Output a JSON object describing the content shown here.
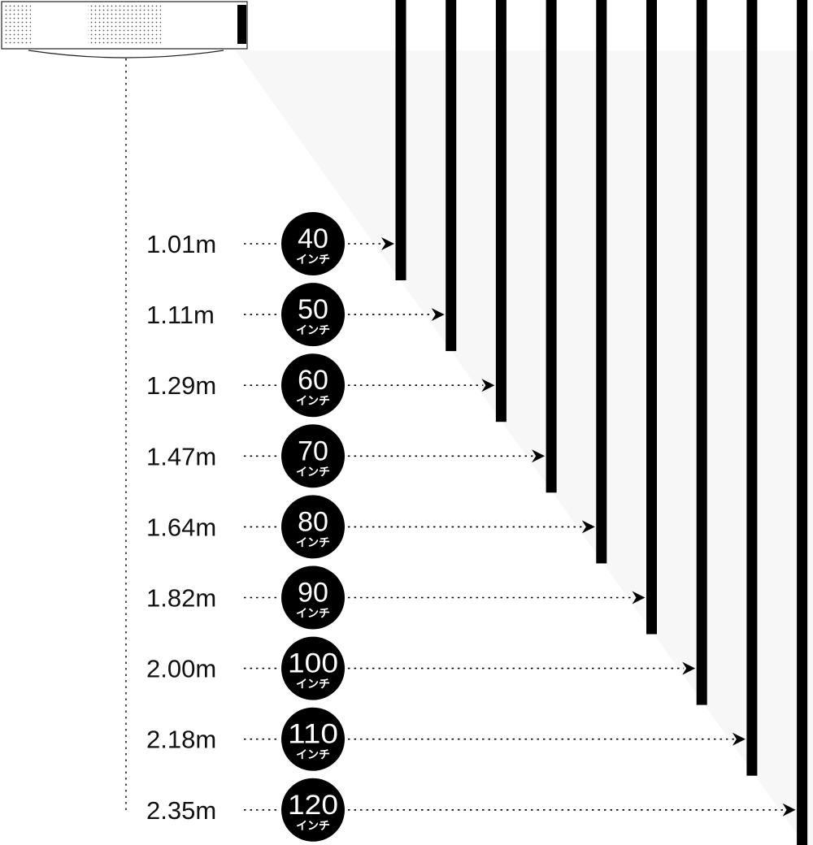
{
  "colors": {
    "ink": "#000000",
    "text": "#111111",
    "projection_shade": "#f7f7f7",
    "badge_text": "#ffffff",
    "projector_body": "#ffffff"
  },
  "projector": {
    "icon": "projector-icon"
  },
  "badge_unit": "インチ",
  "rows": [
    {
      "distance": "1.01m",
      "size": "40"
    },
    {
      "distance": "1.11m",
      "size": "50"
    },
    {
      "distance": "1.29m",
      "size": "60"
    },
    {
      "distance": "1.47m",
      "size": "70"
    },
    {
      "distance": "1.64m",
      "size": "80"
    },
    {
      "distance": "1.82m",
      "size": "90"
    },
    {
      "distance": "2.00m",
      "size": "100"
    },
    {
      "distance": "2.18m",
      "size": "110"
    },
    {
      "distance": "2.35m",
      "size": "120"
    }
  ]
}
